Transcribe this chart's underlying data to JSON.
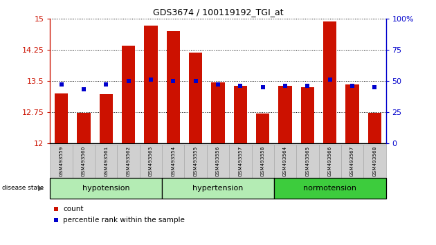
{
  "title": "GDS3674 / 100119192_TGI_at",
  "samples": [
    "GSM493559",
    "GSM493560",
    "GSM493561",
    "GSM493562",
    "GSM493563",
    "GSM493554",
    "GSM493555",
    "GSM493556",
    "GSM493557",
    "GSM493558",
    "GSM493564",
    "GSM493565",
    "GSM493566",
    "GSM493567",
    "GSM493568"
  ],
  "counts": [
    13.2,
    12.73,
    13.18,
    14.35,
    14.82,
    14.7,
    14.17,
    13.47,
    13.38,
    12.72,
    13.38,
    13.35,
    14.93,
    13.42,
    12.73
  ],
  "percentiles": [
    47,
    43,
    47,
    50,
    51,
    50,
    50,
    47,
    46,
    45,
    46,
    46,
    51,
    46,
    45
  ],
  "groups": [
    {
      "label": "hypotension",
      "start": 0,
      "end": 5
    },
    {
      "label": "hypertension",
      "start": 5,
      "end": 10
    },
    {
      "label": "normotension",
      "start": 10,
      "end": 15
    }
  ],
  "group_colors": [
    "#b4ecb4",
    "#b4ecb4",
    "#3dcc3d"
  ],
  "ylim_left": [
    12,
    15
  ],
  "ylim_right": [
    0,
    100
  ],
  "yticks_left": [
    12,
    12.75,
    13.5,
    14.25,
    15
  ],
  "ytick_labels_left": [
    "12",
    "12.75",
    "13.5",
    "14.25",
    "15"
  ],
  "yticks_right": [
    0,
    25,
    50,
    75,
    100
  ],
  "ytick_labels_right": [
    "0",
    "25",
    "50",
    "75",
    "100%"
  ],
  "bar_color": "#cc1100",
  "marker_color": "#0000cc",
  "sample_box_color": "#d0d0d0",
  "disease_state_label": "disease state",
  "legend_items": [
    "count",
    "percentile rank within the sample"
  ]
}
